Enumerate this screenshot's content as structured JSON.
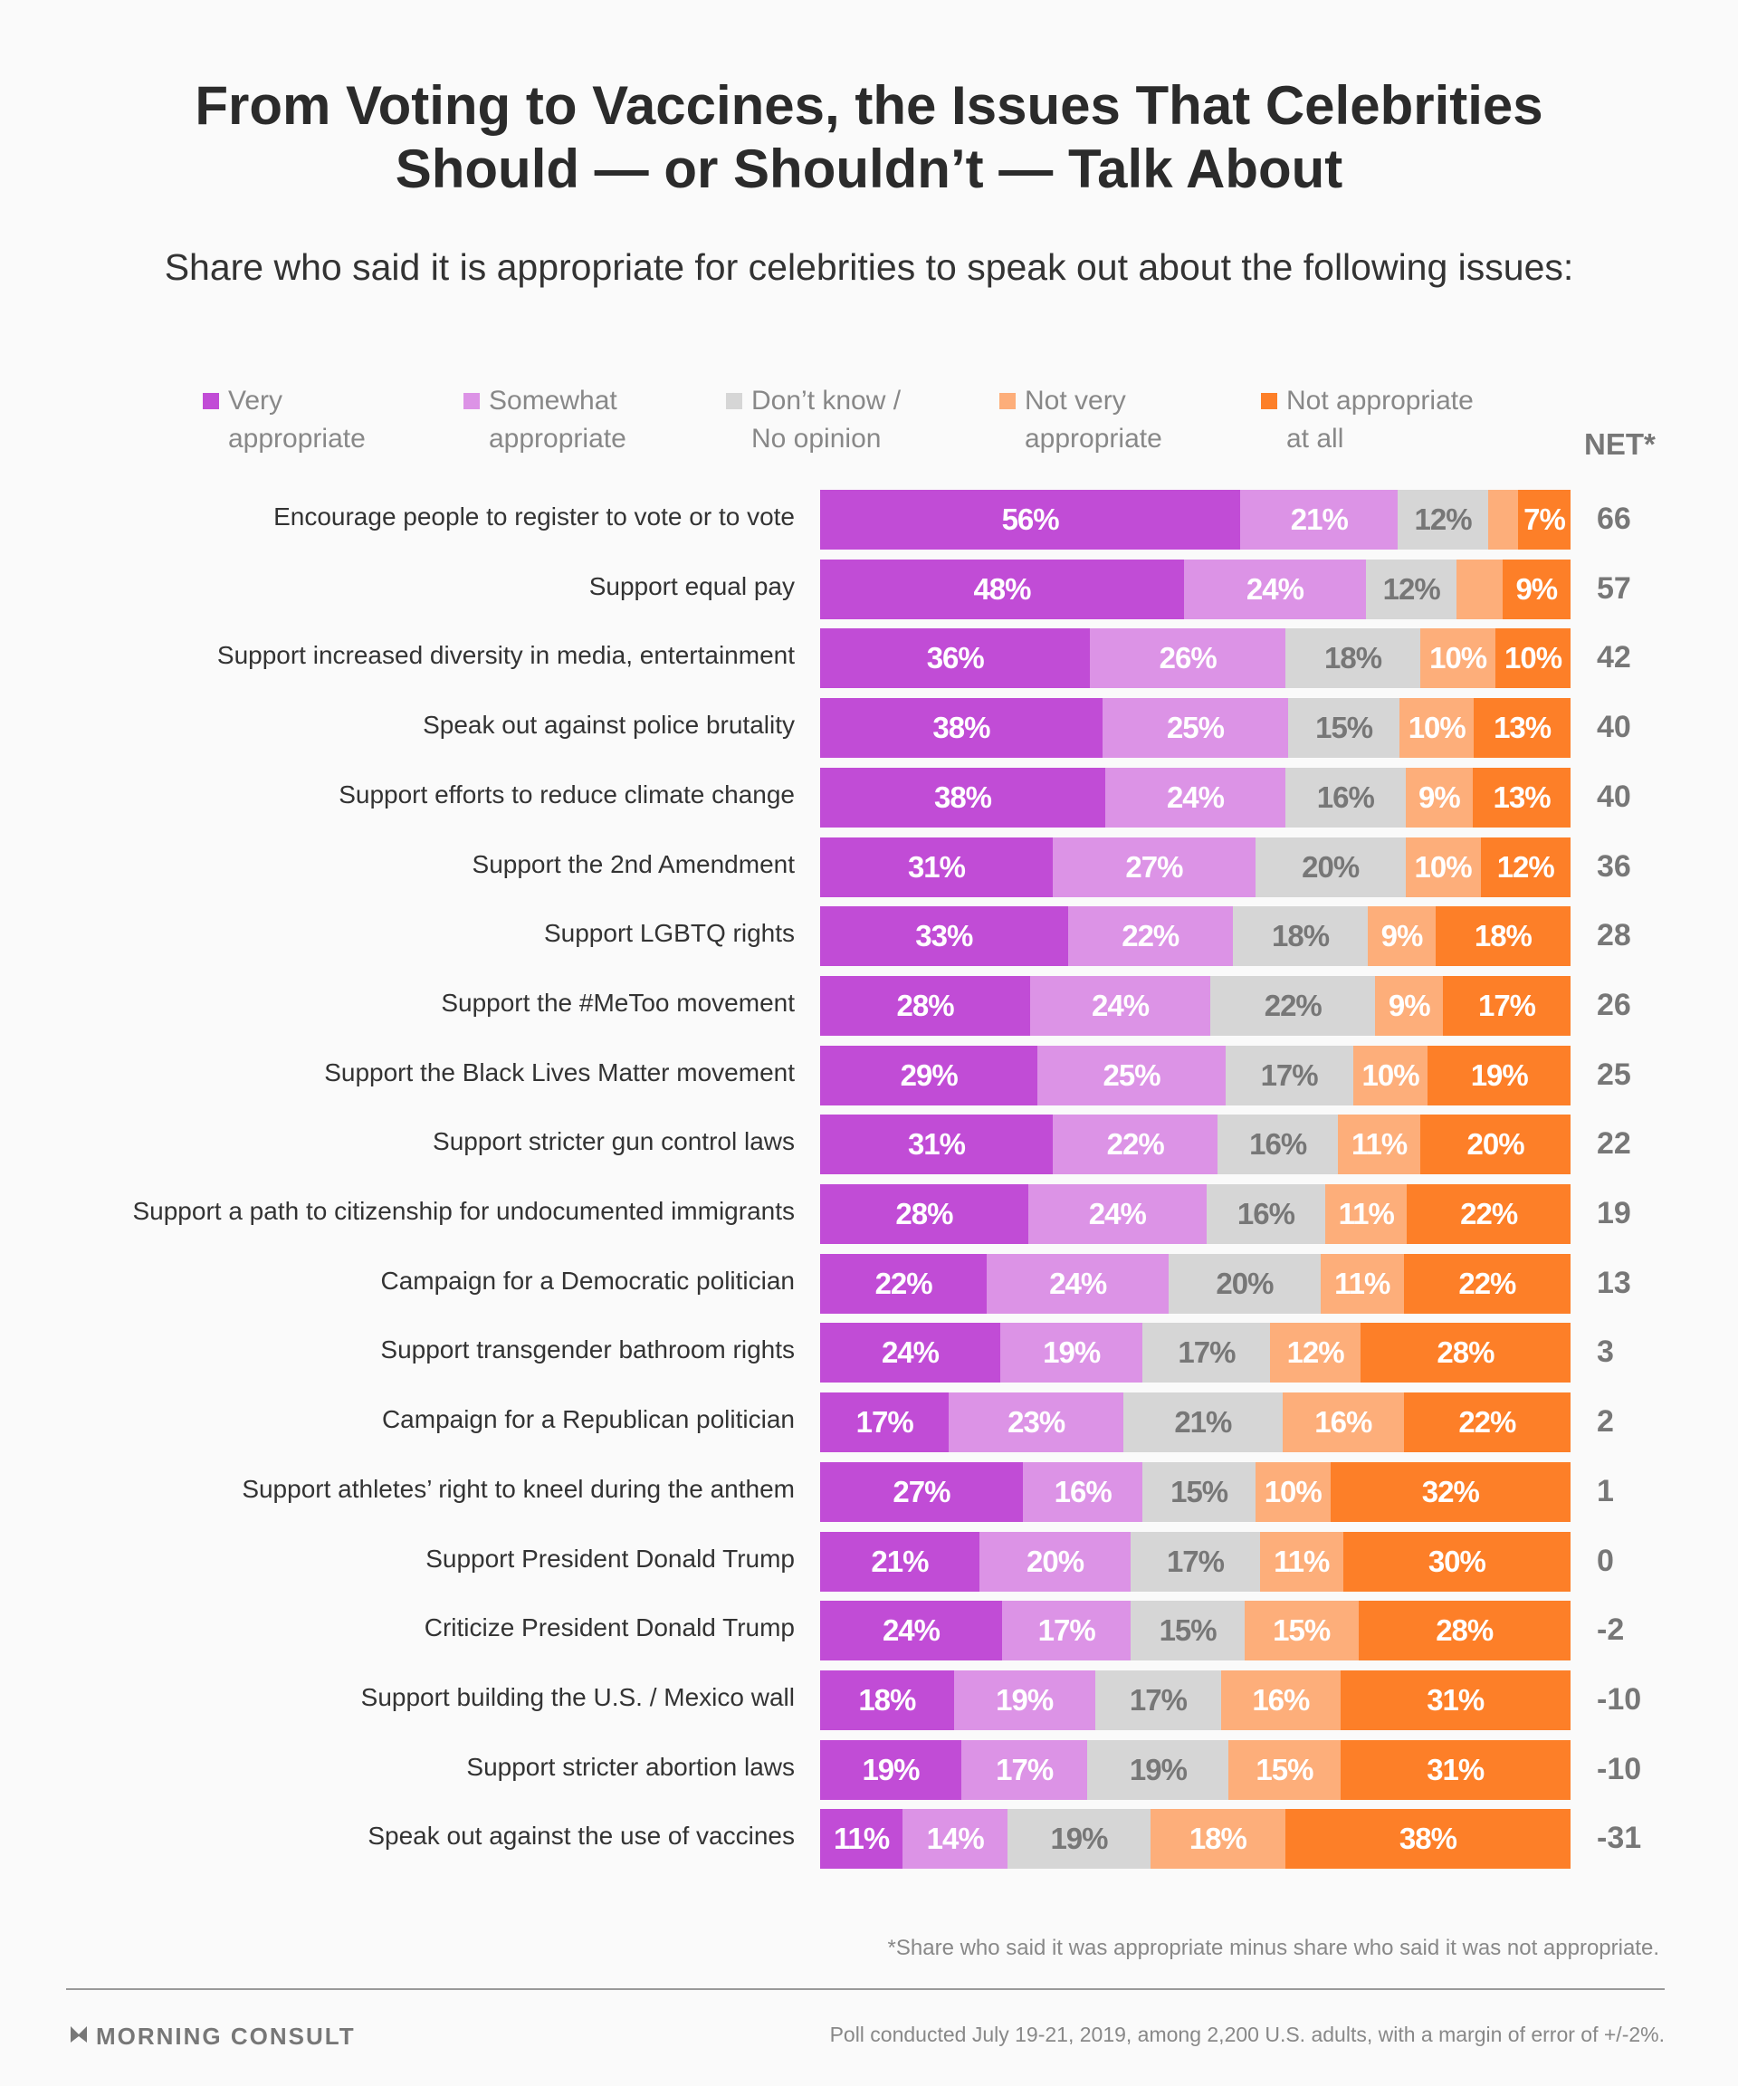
{
  "chart_data": {
    "type": "bar",
    "stacked": true,
    "orientation": "horizontal",
    "title": "From Voting to Vaccines, the Issues That Celebrities Should — or Shouldn’t — Talk About",
    "title_lines": [
      "From Voting to Vaccines, the Issues That Celebrities",
      "Should — or Shouldn’t — Talk About"
    ],
    "subtitle": "Share who said it is appropriate for celebrities to speak out about the following issues:",
    "net_header": "NET*",
    "legend_placement": "top",
    "series": [
      {
        "name": "Very appropriate",
        "legend_lines": [
          "Very",
          "appropriate"
        ],
        "color": "#c14cd6",
        "label_color": "#ffffff",
        "values": [
          56,
          48,
          36,
          38,
          38,
          31,
          33,
          28,
          29,
          31,
          28,
          22,
          24,
          17,
          27,
          21,
          24,
          18,
          19,
          11
        ]
      },
      {
        "name": "Somewhat appropriate",
        "legend_lines": [
          "Somewhat",
          "appropriate"
        ],
        "color": "#dc93e6",
        "label_color": "#ffffff",
        "values": [
          21,
          24,
          26,
          25,
          24,
          27,
          22,
          24,
          25,
          22,
          24,
          24,
          19,
          23,
          16,
          20,
          17,
          19,
          17,
          14
        ]
      },
      {
        "name": "Don’t know / No opinion",
        "legend_lines": [
          "Don’t know /",
          "No opinion"
        ],
        "color": "#d6d6d6",
        "label_color": "#777777",
        "values": [
          12,
          12,
          18,
          15,
          16,
          20,
          18,
          22,
          17,
          16,
          16,
          20,
          17,
          21,
          15,
          17,
          15,
          17,
          19,
          19
        ]
      },
      {
        "name": "Not very appropriate",
        "legend_lines": [
          "Not very",
          "appropriate"
        ],
        "color": "#fdae7a",
        "label_color": "#ffffff",
        "values": [
          4,
          6,
          10,
          10,
          9,
          10,
          9,
          9,
          10,
          11,
          11,
          11,
          12,
          16,
          10,
          11,
          15,
          16,
          15,
          18
        ]
      },
      {
        "name": "Not appropriate at all",
        "legend_lines": [
          "Not appropriate",
          "at all"
        ],
        "color": "#fd7f28",
        "label_color": "#ffffff",
        "values": [
          7,
          9,
          10,
          13,
          13,
          12,
          18,
          17,
          19,
          20,
          22,
          22,
          28,
          22,
          32,
          30,
          28,
          31,
          31,
          38
        ]
      }
    ],
    "categories": [
      "Encourage people to register to vote or to vote",
      "Support equal pay",
      "Support increased diversity in media, entertainment",
      "Speak out against police brutality",
      "Support efforts to reduce climate change",
      "Support the 2nd Amendment",
      "Support LGBTQ rights",
      "Support the #MeToo movement",
      "Support the Black Lives Matter movement",
      "Support stricter gun control laws",
      "Support a path to citizenship for undocumented immigrants",
      "Campaign for a Democratic politician",
      "Support transgender bathroom rights",
      "Campaign for a Republican politician",
      "Support athletes’ right to kneel during the anthem",
      "Support President Donald Trump",
      "Criticize President Donald Trump",
      "Support building the U.S. / Mexico wall",
      "Support stricter abortion laws",
      "Speak out against the use of vaccines"
    ],
    "net": [
      "66",
      "57",
      "42",
      "40",
      "40",
      "36",
      "28",
      "26",
      "25",
      "22",
      "19",
      "13",
      "3",
      "2",
      "1",
      "0",
      "-2",
      "-10",
      "-10",
      "-31"
    ],
    "xlim": [
      0,
      100
    ],
    "unit": "%"
  },
  "footnote": "*Share who said it was appropriate minus share who said it was not appropriate.",
  "logo_text": "MORNING CONSULT",
  "source": "Poll conducted July 19-21, 2019, among 2,200 U.S. adults, with a margin of error of +/-2%."
}
